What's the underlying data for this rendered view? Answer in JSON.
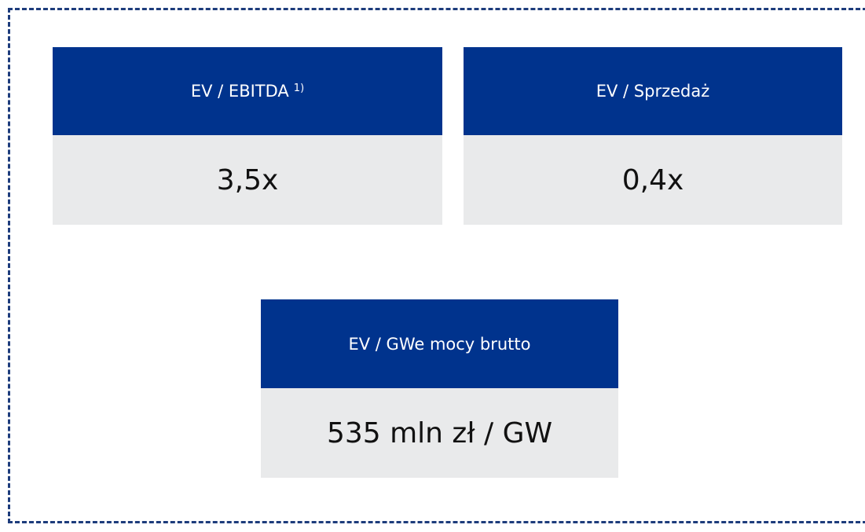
{
  "cards": [
    {
      "label": "EV / EBITDA",
      "note": "1)",
      "value": "3,5x"
    },
    {
      "label": "EV / Sprzedaż",
      "value": "0,4x"
    },
    {
      "label": "EV / GWe mocy brutto",
      "value": "535 mln zł / GW"
    }
  ]
}
